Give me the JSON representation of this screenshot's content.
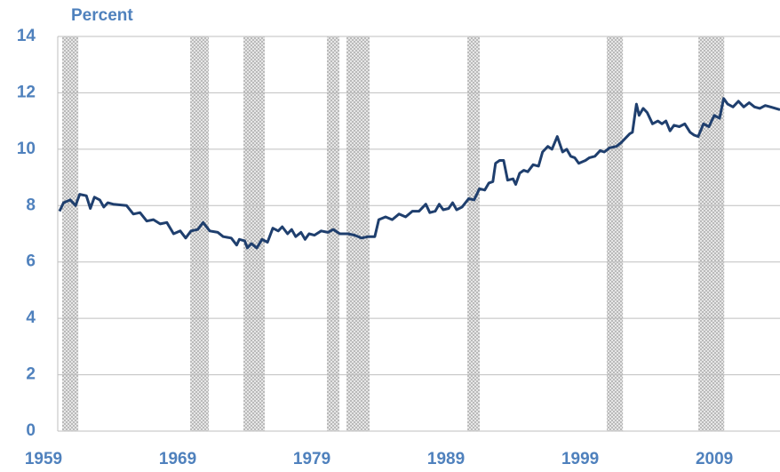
{
  "chart_data": {
    "type": "line",
    "y_axis_label": "Percent",
    "xlim": [
      1959,
      2012.7
    ],
    "ylim": [
      0,
      14
    ],
    "xticks": [
      1959,
      1969,
      1979,
      1989,
      1999,
      2009
    ],
    "yticks": [
      0,
      2,
      4,
      6,
      8,
      10,
      12,
      14
    ],
    "grid": true,
    "recessions": [
      [
        1959.2,
        1960.4
      ],
      [
        1968.74,
        1970.13
      ],
      [
        1972.71,
        1974.3
      ],
      [
        1978.93,
        1979.86
      ],
      [
        1980.39,
        1982.11
      ],
      [
        1989.4,
        1990.32
      ],
      [
        1999.79,
        2000.99
      ],
      [
        2006.62,
        2008.54
      ]
    ],
    "series": [
      {
        "color": "#1f3f6e",
        "x": [
          1959.0,
          1959.3,
          1959.8,
          1960.2,
          1960.5,
          1961.0,
          1961.3,
          1961.6,
          1962.0,
          1962.3,
          1962.6,
          1963.0,
          1964.0,
          1964.5,
          1965.0,
          1965.5,
          1966.0,
          1966.5,
          1967.0,
          1967.5,
          1968.0,
          1968.4,
          1968.8,
          1969.3,
          1969.7,
          1970.2,
          1970.8,
          1971.2,
          1971.8,
          1972.2,
          1972.4,
          1972.8,
          1973.0,
          1973.3,
          1973.7,
          1974.1,
          1974.5,
          1974.9,
          1975.3,
          1975.6,
          1976.0,
          1976.3,
          1976.6,
          1977.0,
          1977.3,
          1977.6,
          1978.0,
          1978.5,
          1979.0,
          1979.4,
          1979.9,
          1980.5,
          1981.0,
          1981.5,
          1982.0,
          1982.5,
          1982.8,
          1983.3,
          1983.8,
          1984.3,
          1984.8,
          1985.3,
          1985.8,
          1986.3,
          1986.6,
          1987.0,
          1987.3,
          1987.6,
          1988.0,
          1988.3,
          1988.6,
          1989.0,
          1989.5,
          1989.9,
          1990.3,
          1990.7,
          1991.0,
          1991.3,
          1991.5,
          1991.8,
          1992.1,
          1992.4,
          1992.8,
          1993.0,
          1993.3,
          1993.6,
          1993.9,
          1994.3,
          1994.7,
          1995.0,
          1995.4,
          1995.7,
          1996.1,
          1996.5,
          1996.8,
          1997.1,
          1997.4,
          1997.7,
          1998.2,
          1998.5,
          1998.9,
          1999.3,
          1999.6,
          2000.0,
          2000.5,
          2000.9,
          2001.2,
          2001.5,
          2001.7,
          2002.0,
          2002.2,
          2002.5,
          2002.8,
          2003.2,
          2003.6,
          2003.9,
          2004.2,
          2004.5,
          2004.8,
          2005.2,
          2005.6,
          2006.0,
          2006.3,
          2006.6,
          2007.0,
          2007.4,
          2007.8,
          2008.2,
          2008.5,
          2008.8,
          2009.2,
          2009.6,
          2010.0,
          2010.4,
          2010.8,
          2011.2,
          2011.6,
          2012.0,
          2012.7
        ],
        "values": [
          7.8,
          8.1,
          8.2,
          8.0,
          8.4,
          8.35,
          7.9,
          8.3,
          8.2,
          7.95,
          8.1,
          8.05,
          8.0,
          7.7,
          7.75,
          7.45,
          7.5,
          7.35,
          7.4,
          7.0,
          7.1,
          6.85,
          7.1,
          7.15,
          7.4,
          7.1,
          7.05,
          6.9,
          6.85,
          6.6,
          6.8,
          6.75,
          6.5,
          6.65,
          6.5,
          6.8,
          6.7,
          7.2,
          7.1,
          7.25,
          7.0,
          7.15,
          6.9,
          7.05,
          6.8,
          7.0,
          6.95,
          7.1,
          7.05,
          7.15,
          7.0,
          7.0,
          6.95,
          6.85,
          6.9,
          6.9,
          7.5,
          7.6,
          7.5,
          7.7,
          7.6,
          7.8,
          7.8,
          8.05,
          7.75,
          7.8,
          8.05,
          7.85,
          7.9,
          8.1,
          7.85,
          7.95,
          8.25,
          8.2,
          8.6,
          8.55,
          8.8,
          8.85,
          9.5,
          9.6,
          9.6,
          8.9,
          8.95,
          8.75,
          9.15,
          9.25,
          9.2,
          9.45,
          9.4,
          9.9,
          10.1,
          10.0,
          10.45,
          9.9,
          10.0,
          9.75,
          9.7,
          9.5,
          9.6,
          9.7,
          9.75,
          9.95,
          9.9,
          10.05,
          10.1,
          10.25,
          10.4,
          10.55,
          10.6,
          11.6,
          11.2,
          11.45,
          11.3,
          10.9,
          11.0,
          10.9,
          11.0,
          10.65,
          10.85,
          10.8,
          10.9,
          10.6,
          10.5,
          10.45,
          10.9,
          10.8,
          11.2,
          11.1,
          11.8,
          11.6,
          11.5,
          11.7,
          11.5,
          11.65,
          11.5,
          11.45,
          11.55,
          11.5,
          11.4
        ]
      }
    ]
  }
}
